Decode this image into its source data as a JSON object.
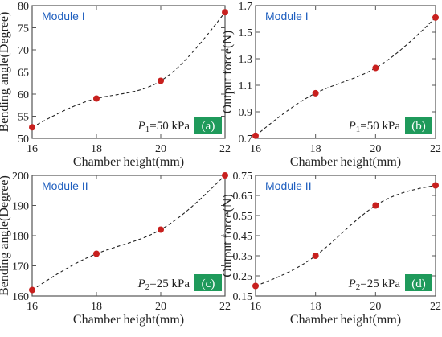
{
  "colors": {
    "point": "#c8201e",
    "curve": "#222222",
    "module_label": "#1f5fbf",
    "badge_bg": "#1f9a5b",
    "badge_text": "#ffffff",
    "frame": "#555555"
  },
  "chart_data": [
    {
      "type": "scatter",
      "panel_label": "(a)",
      "module_label": "Module I",
      "pressure": {
        "symbol": "P",
        "subscript": "1",
        "value": "=50 kPa"
      },
      "xlabel": "Chamber height(mm)",
      "ylabel": "Bending angle(Degree)",
      "xlim": [
        16,
        22
      ],
      "ylim": [
        50,
        80
      ],
      "xticks": [
        "16",
        "18",
        "20",
        "22"
      ],
      "yticks": [
        "50",
        "55",
        "60",
        "65",
        "70",
        "75",
        "80"
      ],
      "series": [
        {
          "x": [
            16,
            18,
            20,
            22
          ],
          "y": [
            52.5,
            59.0,
            63.0,
            78.5
          ]
        }
      ],
      "fit_curve": "dashed"
    },
    {
      "type": "scatter",
      "panel_label": "(b)",
      "module_label": "Module I",
      "pressure": {
        "symbol": "P",
        "subscript": "1",
        "value": "=50 kPa"
      },
      "xlabel": "Chamber height(mm)",
      "ylabel": "Output force(N)",
      "xlim": [
        16,
        22
      ],
      "ylim": [
        0.7,
        1.7
      ],
      "xticks": [
        "16",
        "18",
        "20",
        "22"
      ],
      "yticks": [
        "0.7",
        "0.9",
        "1.1",
        "1.3",
        "1.5",
        "1.7"
      ],
      "series": [
        {
          "x": [
            16,
            18,
            20,
            22
          ],
          "y": [
            0.72,
            1.04,
            1.23,
            1.61
          ]
        }
      ],
      "fit_curve": "dashed"
    },
    {
      "type": "scatter",
      "panel_label": "(c)",
      "module_label": "Module II",
      "pressure": {
        "symbol": "P",
        "subscript": "2",
        "value": "=25 kPa"
      },
      "xlabel": "Chamber height(mm)",
      "ylabel": "Bending angle(Degree)",
      "xlim": [
        16,
        22
      ],
      "ylim": [
        160,
        200
      ],
      "xticks": [
        "16",
        "18",
        "20",
        "22"
      ],
      "yticks": [
        "160",
        "170",
        "180",
        "190",
        "200"
      ],
      "series": [
        {
          "x": [
            16,
            18,
            20,
            22
          ],
          "y": [
            162.0,
            174.0,
            182.0,
            200.0
          ]
        }
      ],
      "fit_curve": "dashed"
    },
    {
      "type": "scatter",
      "panel_label": "(d)",
      "module_label": "Module II",
      "pressure": {
        "symbol": "P",
        "subscript": "2",
        "value": "=25 kPa"
      },
      "xlabel": "Chamber height(mm)",
      "ylabel": "Output force(N)",
      "xlim": [
        16,
        22
      ],
      "ylim": [
        0.15,
        0.75
      ],
      "xticks": [
        "16",
        "18",
        "20",
        "22"
      ],
      "yticks": [
        "0.15",
        "0.25",
        "0.35",
        "0.45",
        "0.55",
        "0.65",
        "0.75"
      ],
      "series": [
        {
          "x": [
            16,
            18,
            20,
            22
          ],
          "y": [
            0.2,
            0.35,
            0.6,
            0.7
          ]
        }
      ],
      "fit_curve": "dashed"
    }
  ]
}
